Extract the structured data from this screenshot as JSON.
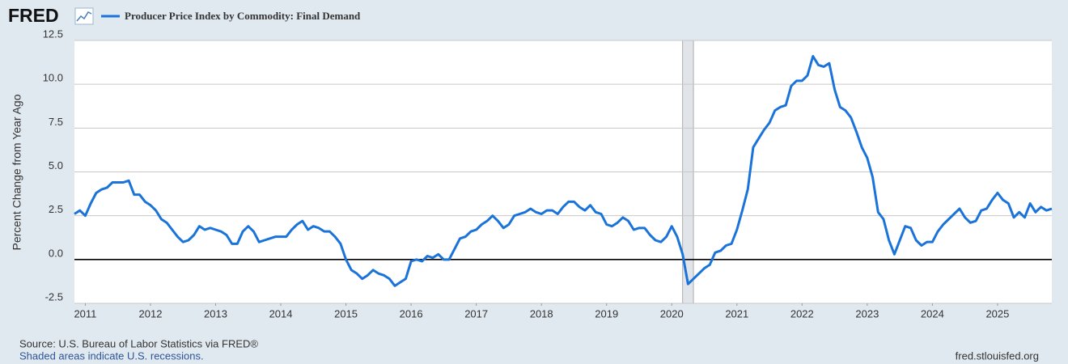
{
  "chart_data": {
    "type": "line",
    "logo": "FRED",
    "ylabel": "Percent Change from Year Ago",
    "source": "Source: U.S. Bureau of Labor Statistics via FRED®",
    "note": "Shaded areas indicate U.S. recessions.",
    "site": "fred.stlouisfed.org",
    "x": [
      2010.833,
      2010.917,
      2011,
      2011.083,
      2011.167,
      2011.25,
      2011.333,
      2011.417,
      2011.5,
      2011.583,
      2011.667,
      2011.75,
      2011.833,
      2011.917,
      2012,
      2012.083,
      2012.167,
      2012.25,
      2012.333,
      2012.417,
      2012.5,
      2012.583,
      2012.667,
      2012.75,
      2012.833,
      2012.917,
      2013,
      2013.083,
      2013.167,
      2013.25,
      2013.333,
      2013.417,
      2013.5,
      2013.583,
      2013.667,
      2013.75,
      2013.833,
      2013.917,
      2014,
      2014.083,
      2014.167,
      2014.25,
      2014.333,
      2014.417,
      2014.5,
      2014.583,
      2014.667,
      2014.75,
      2014.833,
      2014.917,
      2015,
      2015.083,
      2015.167,
      2015.25,
      2015.333,
      2015.417,
      2015.5,
      2015.583,
      2015.667,
      2015.75,
      2015.833,
      2015.917,
      2016,
      2016.083,
      2016.167,
      2016.25,
      2016.333,
      2016.417,
      2016.5,
      2016.583,
      2016.667,
      2016.75,
      2016.833,
      2016.917,
      2017,
      2017.083,
      2017.167,
      2017.25,
      2017.333,
      2017.417,
      2017.5,
      2017.583,
      2017.667,
      2017.75,
      2017.833,
      2017.917,
      2018,
      2018.083,
      2018.167,
      2018.25,
      2018.333,
      2018.417,
      2018.5,
      2018.583,
      2018.667,
      2018.75,
      2018.833,
      2018.917,
      2019,
      2019.083,
      2019.167,
      2019.25,
      2019.333,
      2019.417,
      2019.5,
      2019.583,
      2019.667,
      2019.75,
      2019.833,
      2019.917,
      2020,
      2020.083,
      2020.167,
      2020.25,
      2020.333,
      2020.417,
      2020.5,
      2020.583,
      2020.667,
      2020.75,
      2020.833,
      2020.917,
      2021,
      2021.083,
      2021.167,
      2021.25,
      2021.333,
      2021.417,
      2021.5,
      2021.583,
      2021.667,
      2021.75,
      2021.833,
      2021.917,
      2022,
      2022.083,
      2022.167,
      2022.25,
      2022.333,
      2022.417,
      2022.5,
      2022.583,
      2022.667,
      2022.75,
      2022.833,
      2022.917,
      2023,
      2023.083,
      2023.167,
      2023.25,
      2023.333,
      2023.417,
      2023.5,
      2023.583,
      2023.667,
      2023.75,
      2023.833,
      2023.917,
      2024,
      2024.083,
      2024.167,
      2024.25,
      2024.333,
      2024.417,
      2024.5,
      2024.583,
      2024.667,
      2024.75,
      2024.833,
      2024.917,
      2025,
      2025.083,
      2025.167,
      2025.25,
      2025.333,
      2025.417,
      2025.5,
      2025.583,
      2025.667,
      2025.75,
      2025.833
    ],
    "series": [
      {
        "name": "Producer Price Index by Commodity: Final Demand",
        "color": "#1a73d9",
        "values": [
          2.6,
          2.8,
          2.5,
          3.2,
          3.8,
          4.0,
          4.1,
          4.4,
          4.4,
          4.4,
          4.5,
          3.7,
          3.7,
          3.3,
          3.1,
          2.8,
          2.3,
          2.1,
          1.7,
          1.3,
          1.0,
          1.1,
          1.4,
          1.9,
          1.7,
          1.8,
          1.7,
          1.6,
          1.4,
          0.9,
          0.9,
          1.6,
          1.9,
          1.6,
          1.0,
          1.1,
          1.2,
          1.3,
          1.3,
          1.3,
          1.7,
          2.0,
          2.2,
          1.7,
          1.9,
          1.8,
          1.6,
          1.6,
          1.3,
          0.9,
          0.0,
          -0.6,
          -0.8,
          -1.1,
          -0.9,
          -0.6,
          -0.8,
          -0.9,
          -1.1,
          -1.5,
          -1.3,
          -1.1,
          -0.1,
          0.0,
          -0.1,
          0.2,
          0.1,
          0.3,
          0.0,
          0.0,
          0.6,
          1.2,
          1.3,
          1.6,
          1.7,
          2.0,
          2.2,
          2.5,
          2.2,
          1.8,
          2.0,
          2.5,
          2.6,
          2.7,
          2.9,
          2.7,
          2.6,
          2.8,
          2.8,
          2.6,
          3.0,
          3.3,
          3.3,
          3.0,
          2.8,
          3.1,
          2.7,
          2.6,
          2.0,
          1.9,
          2.1,
          2.4,
          2.2,
          1.7,
          1.8,
          1.8,
          1.4,
          1.1,
          1.0,
          1.3,
          1.9,
          1.3,
          0.3,
          -1.4,
          -1.1,
          -0.8,
          -0.5,
          -0.3,
          0.4,
          0.5,
          0.8,
          0.9,
          1.7,
          2.8,
          4.0,
          6.4,
          6.9,
          7.4,
          7.8,
          8.5,
          8.7,
          8.8,
          9.9,
          10.2,
          10.2,
          10.5,
          11.6,
          11.1,
          11.0,
          11.2,
          9.7,
          8.7,
          8.5,
          8.1,
          7.3,
          6.4,
          5.8,
          4.7,
          2.7,
          2.3,
          1.1,
          0.3,
          1.1,
          1.9,
          1.8,
          1.1,
          0.8,
          1.0,
          1.0,
          1.6,
          2.0,
          2.3,
          2.6,
          2.9,
          2.4,
          2.1,
          2.2,
          2.8,
          2.9,
          3.4,
          3.8,
          3.4,
          3.2,
          2.4,
          2.7,
          2.4,
          3.2,
          2.7,
          3.0,
          2.8,
          2.9
        ]
      }
    ],
    "shaded_periods": [
      [
        2020.167,
        2020.333
      ]
    ],
    "xlim": [
      2010.833,
      2025.833
    ],
    "xticks": [
      2011,
      2012,
      2013,
      2014,
      2015,
      2016,
      2017,
      2018,
      2019,
      2020,
      2021,
      2022,
      2023,
      2024,
      2025
    ],
    "ylim": [
      -2.5,
      12.5
    ],
    "yticks": [
      -2.5,
      {
        "value": 0,
        "label": "0.0"
      },
      2.5,
      {
        "value": 5,
        "label": "5.0"
      },
      7.5,
      {
        "value": 10,
        "label": "10.0"
      },
      12.5
    ],
    "grid": true
  }
}
